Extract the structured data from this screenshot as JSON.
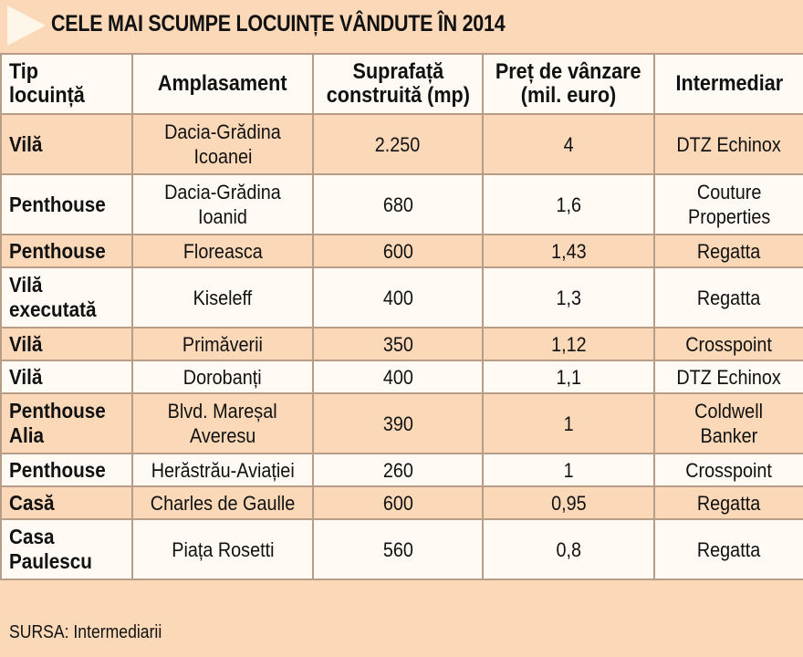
{
  "title": "CELE MAI SCUMPE LOCUINȚE VÂNDUTE ÎN 2014",
  "source": "SURSA: Intermediarii",
  "colors": {
    "background": "#fad8b8",
    "light_row": "#fffaf3",
    "grid": "#b79d86",
    "arrow": "#fff6ea"
  },
  "chart_data": {
    "type": "table",
    "title": "CELE MAI SCUMPE LOCUINȚE VÂNDUTE ÎN 2014",
    "columns": [
      [
        "Tip locuință"
      ],
      [
        "Amplasament"
      ],
      [
        "Suprafață",
        "construită (mp)"
      ],
      [
        "Preț de vânzare",
        "(mil. euro)"
      ],
      [
        "Intermediar"
      ]
    ],
    "rows": [
      {
        "tip": [
          "Vilă"
        ],
        "amplasament": [
          "Dacia-Grădina",
          "Icoanei"
        ],
        "suprafata": "2.250",
        "pret": "4",
        "intermediar": [
          "DTZ Echinox"
        ]
      },
      {
        "tip": [
          "Penthouse"
        ],
        "amplasament": [
          "Dacia-Grădina",
          "Ioanid"
        ],
        "suprafata": "680",
        "pret": "1,6",
        "intermediar": [
          "Couture",
          "Properties"
        ]
      },
      {
        "tip": [
          "Penthouse"
        ],
        "amplasament": [
          "Floreasca"
        ],
        "suprafata": "600",
        "pret": "1,43",
        "intermediar": [
          "Regatta"
        ]
      },
      {
        "tip": [
          "Vilă",
          "executată"
        ],
        "amplasament": [
          "Kiseleff"
        ],
        "suprafata": "400",
        "pret": "1,3",
        "intermediar": [
          "Regatta"
        ]
      },
      {
        "tip": [
          "Vilă"
        ],
        "amplasament": [
          "Primăverii"
        ],
        "suprafata": "350",
        "pret": "1,12",
        "intermediar": [
          "Crosspoint"
        ]
      },
      {
        "tip": [
          "Vilă"
        ],
        "amplasament": [
          "Dorobanți"
        ],
        "suprafata": "400",
        "pret": "1,1",
        "intermediar": [
          "DTZ Echinox"
        ]
      },
      {
        "tip": [
          "Penthouse",
          "Alia"
        ],
        "amplasament": [
          "Blvd. Mareșal",
          "Averesu"
        ],
        "suprafata": "390",
        "pret": "1",
        "intermediar": [
          "Coldwell",
          "Banker"
        ]
      },
      {
        "tip": [
          "Penthouse"
        ],
        "amplasament": [
          "Herăstrău-Aviației"
        ],
        "suprafata": "260",
        "pret": "1",
        "intermediar": [
          "Crosspoint"
        ]
      },
      {
        "tip": [
          "Casă"
        ],
        "amplasament": [
          "Charles de Gaulle"
        ],
        "suprafata": "600",
        "pret": "0,95",
        "intermediar": [
          "Regatta"
        ]
      },
      {
        "tip": [
          "Casa",
          "Paulescu"
        ],
        "amplasament": [
          "Piața Rosetti"
        ],
        "suprafata": "560",
        "pret": "0,8",
        "intermediar": [
          "Regatta"
        ]
      }
    ]
  }
}
